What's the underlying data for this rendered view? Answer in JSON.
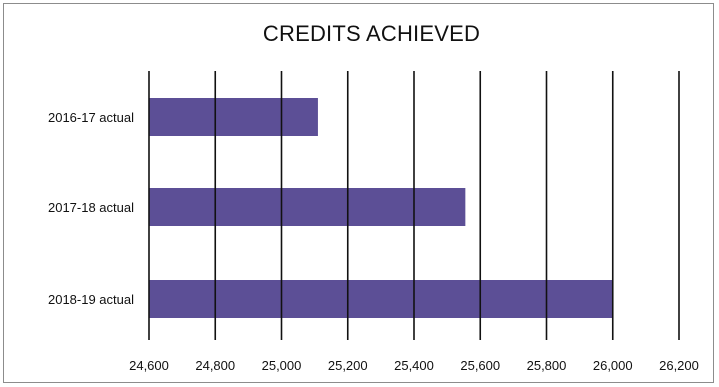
{
  "chart_data": {
    "type": "bar",
    "orientation": "horizontal",
    "title": "CREDITS ACHIEVED",
    "categories": [
      "2016-17 actual",
      "2017-18 actual",
      "2018-19 actual"
    ],
    "values": [
      25110,
      25555,
      26000
    ],
    "xlim": [
      24600,
      26200
    ],
    "xticks": [
      "24,600",
      "24,800",
      "25,000",
      "25,200",
      "25,400",
      "25,600",
      "25,800",
      "26,000",
      "26,200"
    ],
    "grid": true,
    "bar_color": "#5c4f96",
    "xlabel": "",
    "ylabel": ""
  }
}
